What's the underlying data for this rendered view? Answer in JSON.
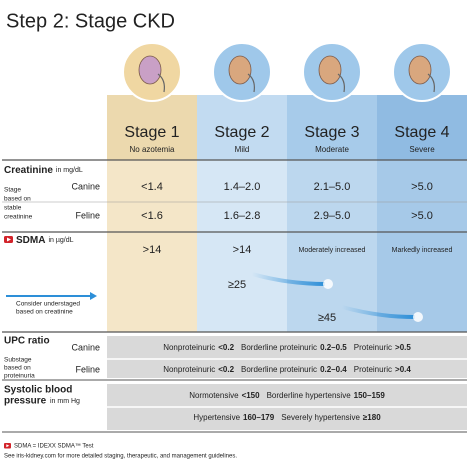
{
  "title": "Step 2: Stage CKD",
  "stages": [
    {
      "name": "Stage 1",
      "desc": "No azotemia"
    },
    {
      "name": "Stage 2",
      "desc": "Mild"
    },
    {
      "name": "Stage 3",
      "desc": "Moderate"
    },
    {
      "name": "Stage 4",
      "desc": "Severe"
    }
  ],
  "creatinine": {
    "label": "Creatinine",
    "unit": "in mg/dL",
    "note": [
      "Stage",
      "based on",
      "stable",
      "creatinine"
    ],
    "rows": [
      {
        "species": "Canine",
        "values": [
          "<1.4",
          "1.4–2.0",
          "2.1–5.0",
          ">5.0"
        ]
      },
      {
        "species": "Feline",
        "values": [
          "<1.6",
          "1.6–2.8",
          "2.9–5.0",
          ">5.0"
        ]
      }
    ]
  },
  "sdma": {
    "label": "SDMA",
    "unit": "in µg/dL",
    "values": [
      ">14",
      ">14",
      "Moderately increased",
      "Markedly increased"
    ],
    "upgrades": [
      "≥25",
      "≥45"
    ],
    "note": [
      "Consider understaged",
      "based on creatinine"
    ]
  },
  "upc": {
    "label": "UPC ratio",
    "note": [
      "Substage",
      "based on",
      "proteinuria"
    ],
    "rows": [
      {
        "species": "Canine",
        "items": [
          {
            "label": "Nonproteinuric",
            "value": "<0.2"
          },
          {
            "label": "Borderline proteinuric",
            "value": "0.2–0.5"
          },
          {
            "label": "Proteinuric",
            "value": ">0.5"
          }
        ]
      },
      {
        "species": "Feline",
        "items": [
          {
            "label": "Nonproteinuric",
            "value": "<0.2"
          },
          {
            "label": "Borderline proteinuric",
            "value": "0.2–0.4"
          },
          {
            "label": "Proteinuric",
            "value": ">0.4"
          }
        ]
      }
    ]
  },
  "bp": {
    "label": [
      "Systolic blood",
      "pressure"
    ],
    "unit": "in mm Hg",
    "rows": [
      [
        {
          "label": "Normotensive",
          "value": "<150"
        },
        {
          "label": "Borderline hypertensive",
          "value": "150–159"
        }
      ],
      [
        {
          "label": "Hypertensive",
          "value": "160–179"
        },
        {
          "label": "Severely hypertensive",
          "value": "≥180"
        }
      ]
    ]
  },
  "footnotes": [
    "SDMA = IDEXX SDMA™ Test",
    "See iris-kidney.com for more detailed staging, therapeutic, and management guidelines."
  ]
}
